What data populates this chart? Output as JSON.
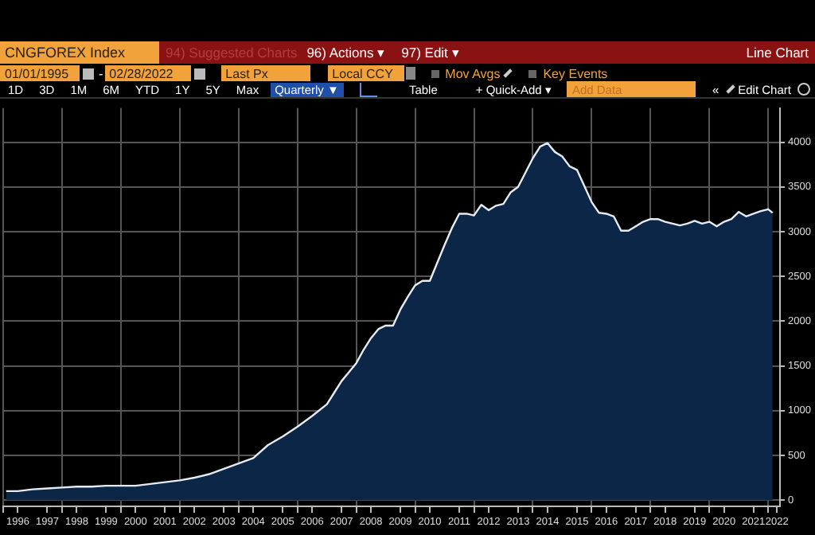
{
  "chart_data": {
    "type": "area",
    "title": "CNGFOREX Index",
    "subtitle": "Line Chart",
    "annotations": [
      "94) Suggested Charts",
      "96) Actions ▾",
      "97) Edit ▾",
      "01/01/1995",
      "-",
      "02/28/2022",
      "Last Px",
      "Local CCY",
      "Mov Avgs",
      "Key Events",
      "1D",
      "3D",
      "1M",
      "6M",
      "YTD",
      "1Y",
      "5Y",
      "Max",
      "Quarterly ▼",
      "Table",
      "+ Quick-Add ▾",
      "Add Data",
      "«",
      "Edit Chart"
    ],
    "x": [
      1996.1,
      1996.5,
      1997.0,
      1997.5,
      1998.0,
      1998.5,
      1999.0,
      1999.5,
      2000.0,
      2000.5,
      2001.0,
      2001.5,
      2002.0,
      2002.5,
      2003.0,
      2003.5,
      2004.0,
      2004.5,
      2005.0,
      2005.5,
      2006.0,
      2006.5,
      2007.0,
      2007.25,
      2007.5,
      2007.75,
      2008.0,
      2008.25,
      2008.5,
      2008.75,
      2009.0,
      2009.25,
      2009.5,
      2009.75,
      2010.0,
      2010.25,
      2010.5,
      2010.75,
      2011.0,
      2011.25,
      2011.5,
      2011.75,
      2012.0,
      2012.25,
      2012.5,
      2012.75,
      2013.0,
      2013.25,
      2013.5,
      2013.75,
      2014.0,
      2014.25,
      2014.5,
      2014.75,
      2015.0,
      2015.25,
      2015.5,
      2015.75,
      2016.0,
      2016.25,
      2016.5,
      2016.75,
      2017.0,
      2017.25,
      2017.5,
      2017.75,
      2018.0,
      2018.25,
      2018.5,
      2018.75,
      2019.0,
      2019.25,
      2019.5,
      2019.75,
      2020.0,
      2020.25,
      2020.5,
      2020.75,
      2021.0,
      2021.25,
      2021.5,
      2021.75,
      2022.0,
      2022.15
    ],
    "series": [
      {
        "color": "#0b2646",
        "values": [
          100,
          100,
          120,
          130,
          140,
          150,
          150,
          160,
          160,
          160,
          180,
          200,
          220,
          250,
          290,
          350,
          410,
          470,
          615,
          710,
          820,
          940,
          1070,
          1200,
          1330,
          1430,
          1530,
          1680,
          1810,
          1910,
          1950,
          1950,
          2130,
          2270,
          2400,
          2450,
          2450,
          2650,
          2850,
          3040,
          3200,
          3200,
          3180,
          3300,
          3240,
          3290,
          3310,
          3440,
          3500,
          3660,
          3820,
          3950,
          3990,
          3890,
          3840,
          3730,
          3690,
          3510,
          3330,
          3210,
          3200,
          3170,
          3010,
          3010,
          3060,
          3110,
          3140,
          3140,
          3110,
          3090,
          3070,
          3090,
          3120,
          3090,
          3110,
          3060,
          3110,
          3140,
          3220,
          3170,
          3200,
          3230,
          3250,
          3210
        ]
      }
    ],
    "xlim": [
      1996,
      2022.4
    ],
    "xticks": [
      {
        "value": 1996,
        "label": null
      },
      {
        "value": 1996.5,
        "label": "1996"
      },
      {
        "value": 1997.5,
        "label": "1997"
      },
      {
        "value": 1998,
        "label": null
      },
      {
        "value": 1998.5,
        "label": "1998"
      },
      {
        "value": 1999.5,
        "label": "1999"
      },
      {
        "value": 2000,
        "label": null
      },
      {
        "value": 2000.5,
        "label": "2000"
      },
      {
        "value": 2001.5,
        "label": "2001"
      },
      {
        "value": 2002,
        "label": null
      },
      {
        "value": 2002.5,
        "label": "2002"
      },
      {
        "value": 2003.5,
        "label": "2003"
      },
      {
        "value": 2004,
        "label": null
      },
      {
        "value": 2004.5,
        "label": "2004"
      },
      {
        "value": 2005.5,
        "label": "2005"
      },
      {
        "value": 2006,
        "label": null
      },
      {
        "value": 2006.5,
        "label": "2006"
      },
      {
        "value": 2007.5,
        "label": "2007"
      },
      {
        "value": 2008,
        "label": null
      },
      {
        "value": 2008.5,
        "label": "2008"
      },
      {
        "value": 2009.5,
        "label": "2009"
      },
      {
        "value": 2010,
        "label": null
      },
      {
        "value": 2010.5,
        "label": "2010"
      },
      {
        "value": 2011.5,
        "label": "2011"
      },
      {
        "value": 2012,
        "label": null
      },
      {
        "value": 2012.5,
        "label": "2012"
      },
      {
        "value": 2013.5,
        "label": "2013"
      },
      {
        "value": 2014,
        "label": null
      },
      {
        "value": 2014.5,
        "label": "2014"
      },
      {
        "value": 2015.5,
        "label": "2015"
      },
      {
        "value": 2016,
        "label": null
      },
      {
        "value": 2016.5,
        "label": "2016"
      },
      {
        "value": 2017.5,
        "label": "2017"
      },
      {
        "value": 2018,
        "label": null
      },
      {
        "value": 2018.5,
        "label": "2018"
      },
      {
        "value": 2019.5,
        "label": "2019"
      },
      {
        "value": 2020,
        "label": null
      },
      {
        "value": 2020.5,
        "label": "2020"
      },
      {
        "value": 2021.5,
        "label": "2021"
      },
      {
        "value": 2022,
        "label": null
      },
      {
        "value": 2022.3,
        "label": "2022"
      }
    ],
    "ylim": [
      -70,
      4380
    ],
    "yticks": [
      0,
      500,
      1000,
      1500,
      2000,
      2500,
      3000,
      3500,
      4000
    ],
    "grid": true,
    "legend": false,
    "marker": "none",
    "line_style": "solid"
  }
}
